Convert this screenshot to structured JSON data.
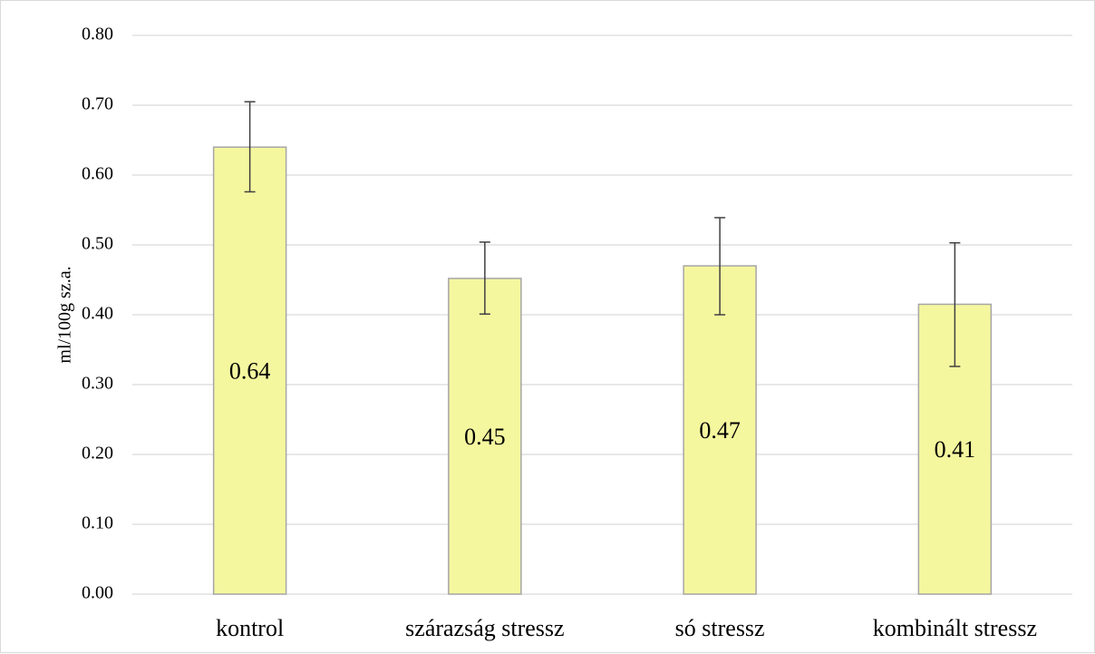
{
  "chart_data": {
    "type": "bar",
    "ylabel": "ml/100g sz.a.",
    "xlabel": "",
    "ylim": [
      0,
      0.8
    ],
    "yticks": [
      "0.00",
      "0.10",
      "0.20",
      "0.30",
      "0.40",
      "0.50",
      "0.60",
      "0.70",
      "0.80"
    ],
    "grid": true,
    "categories": [
      "kontrol",
      "szárazság stressz",
      "só stressz",
      "kombinált stressz"
    ],
    "values": [
      0.64,
      0.452,
      0.47,
      0.415
    ],
    "data_labels": [
      "0.64",
      "0.45",
      "0.47",
      "0.41"
    ],
    "error_bars": [
      {
        "low": 0.576,
        "high": 0.705
      },
      {
        "low": 0.401,
        "high": 0.504
      },
      {
        "low": 0.4,
        "high": 0.539
      },
      {
        "low": 0.326,
        "high": 0.503
      }
    ],
    "colors": {
      "bar_fill": "#f5f79f",
      "bar_stroke": "#a6a6a6",
      "grid": "#d9d9d9",
      "error_bar": "#404040"
    }
  }
}
